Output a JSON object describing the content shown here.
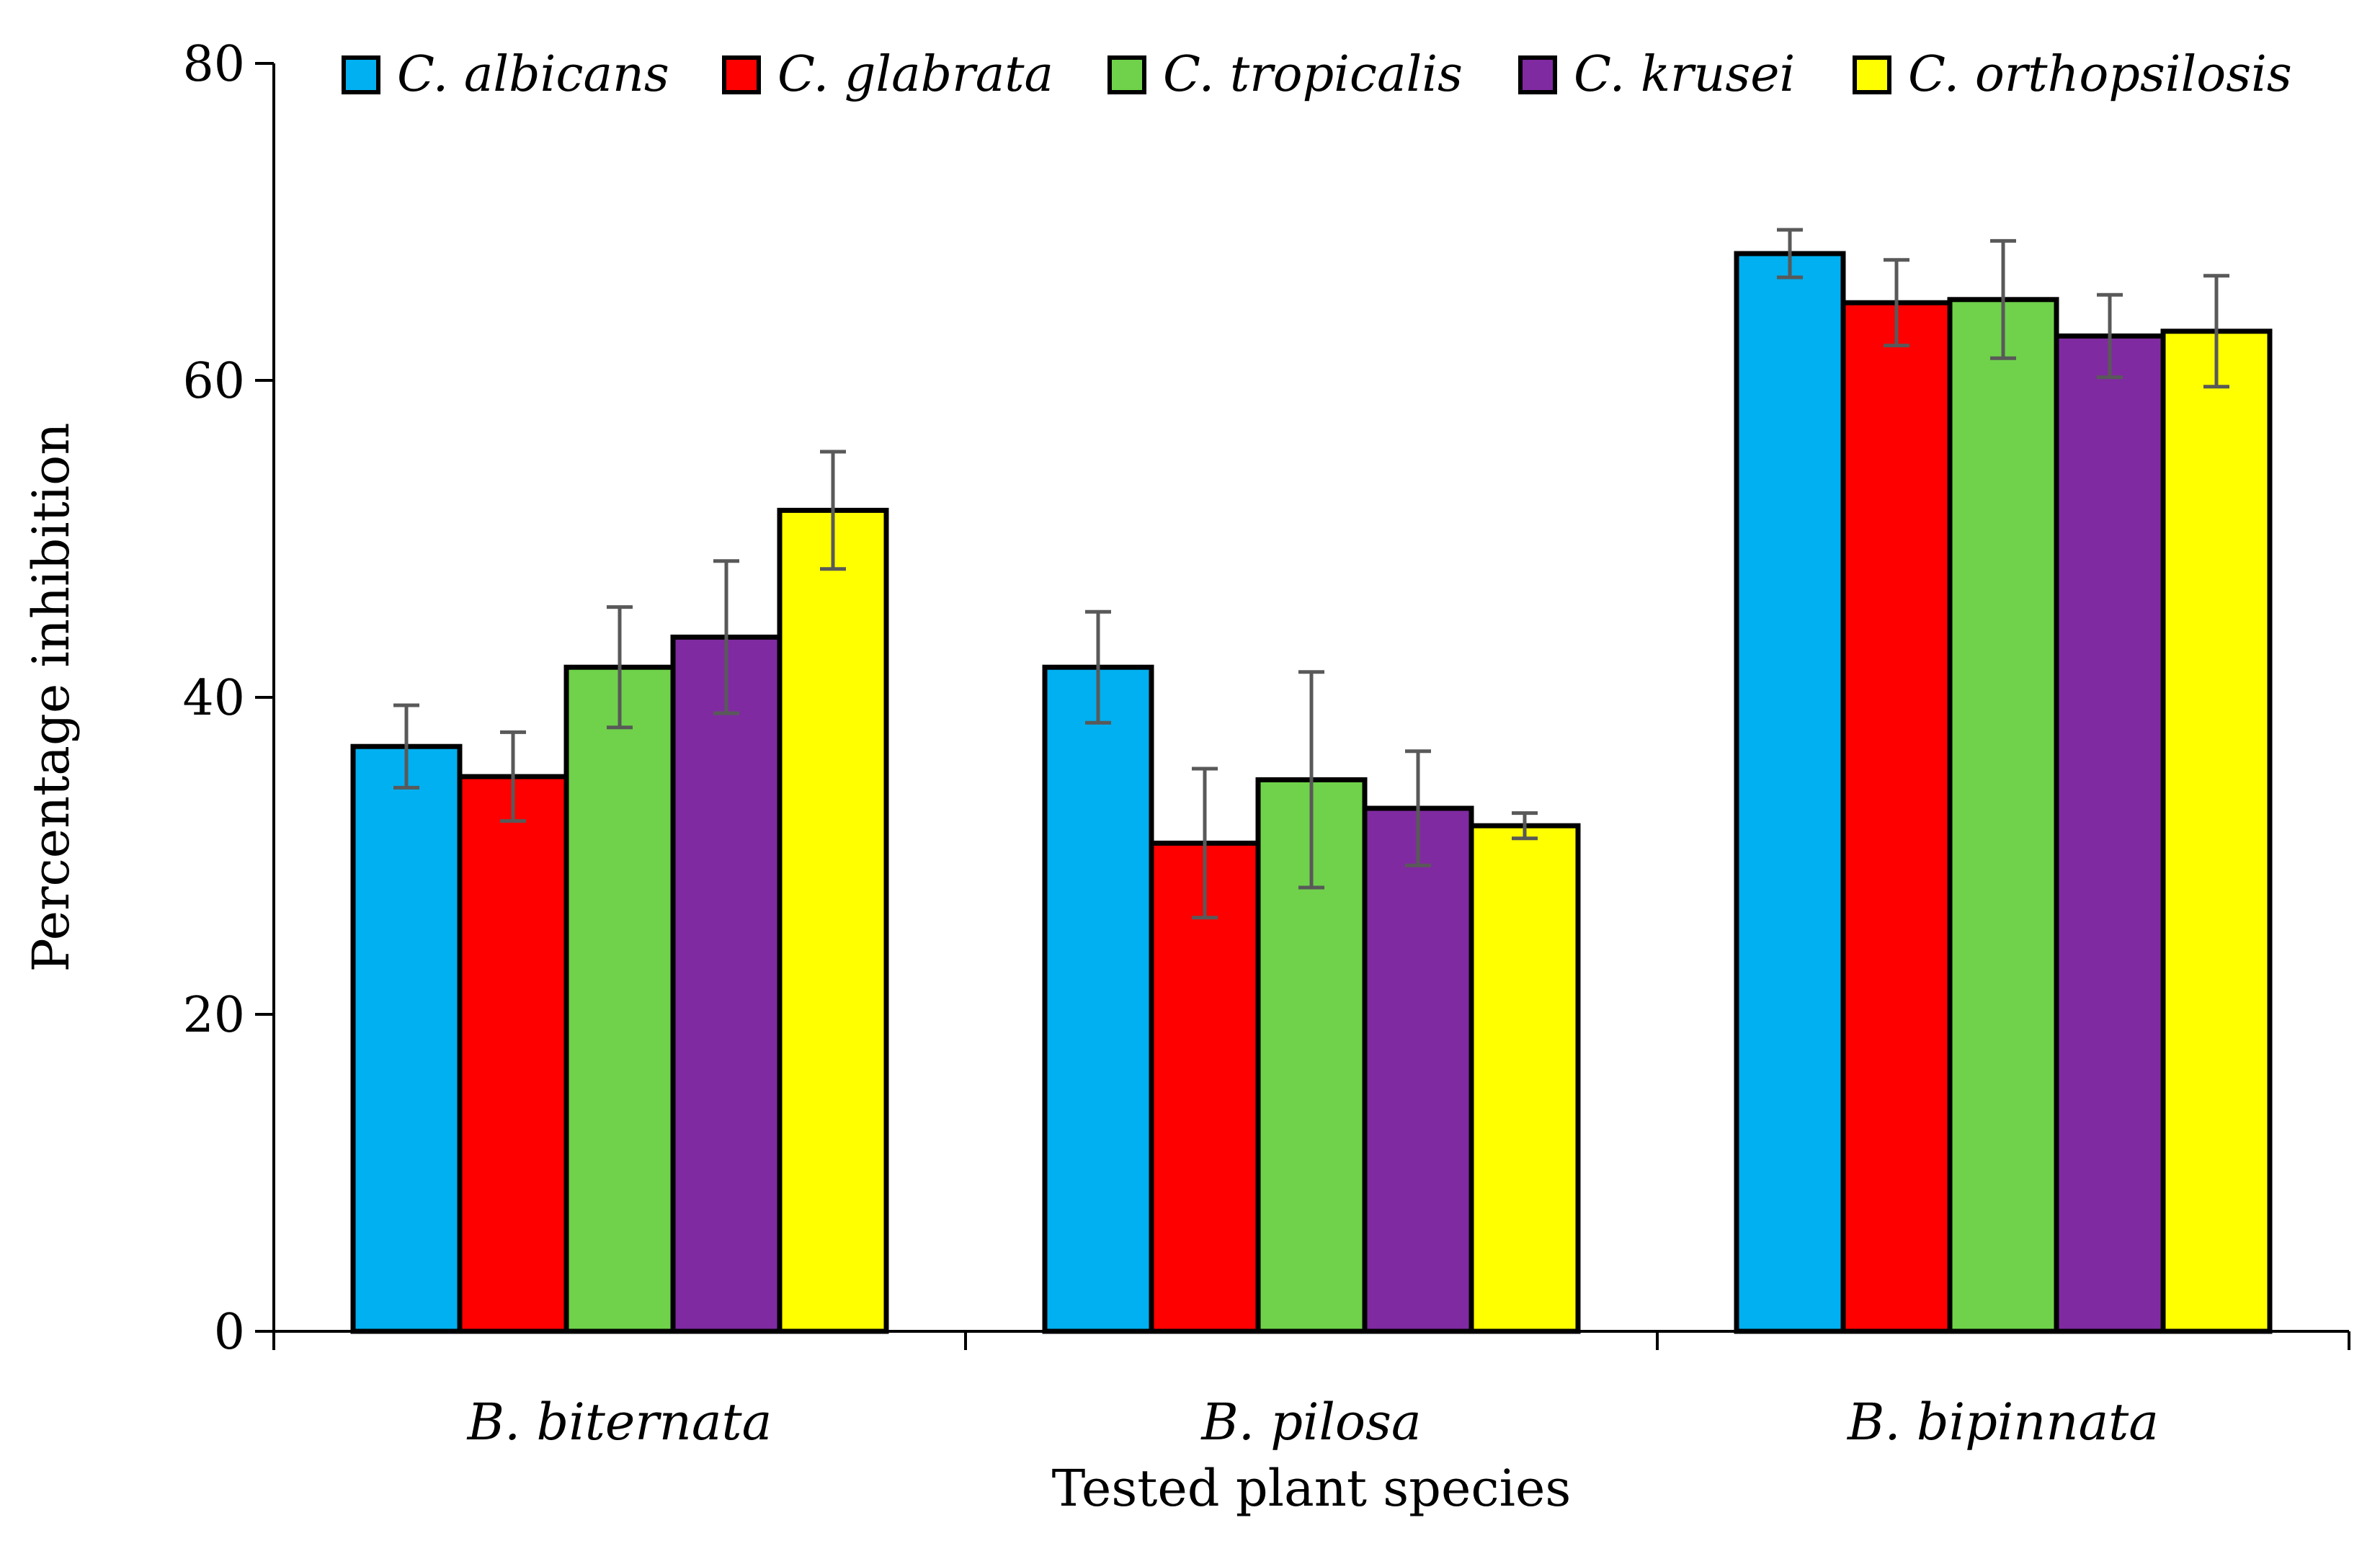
{
  "chart_data": {
    "type": "bar",
    "title": "",
    "xlabel": "Tested plant species",
    "ylabel": "Percentage  inhibition",
    "ylim": [
      0,
      80
    ],
    "yticks": [
      0,
      20,
      40,
      60,
      80
    ],
    "ytick_labels": [
      "0",
      "20",
      "40",
      "60",
      "80"
    ],
    "grid": false,
    "legend_position": "top",
    "categories": [
      "B. biternata",
      "B. pilosa",
      "B. bipinnata"
    ],
    "series": [
      {
        "name": "C. albicans",
        "color": "#00B0F0",
        "values": [
          36.9,
          41.9,
          68.0
        ],
        "errors": [
          2.6,
          3.5,
          1.5
        ]
      },
      {
        "name": "C. glabrata",
        "color": "#FF0000",
        "values": [
          35.0,
          30.8,
          64.9
        ],
        "errors": [
          2.8,
          4.7,
          2.7
        ]
      },
      {
        "name": "C. tropicalis",
        "color": "#6FD24A",
        "values": [
          41.9,
          34.8,
          65.1
        ],
        "errors": [
          3.8,
          6.8,
          3.7
        ]
      },
      {
        "name": "C. krusei",
        "color": "#7F2AA0",
        "values": [
          43.8,
          33.0,
          62.8
        ],
        "errors": [
          4.8,
          3.6,
          2.6
        ]
      },
      {
        "name": "C. orthopsilosis",
        "color": "#FFFF00",
        "values": [
          51.8,
          31.9,
          63.1
        ],
        "errors": [
          3.7,
          0.8,
          3.5
        ]
      }
    ]
  }
}
